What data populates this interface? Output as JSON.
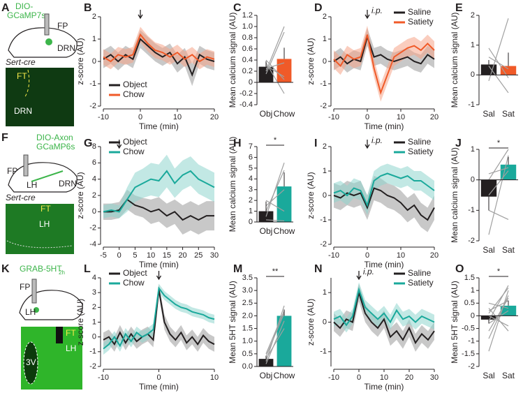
{
  "diagrams": [
    {
      "panel": "A",
      "labels": [
        "DIO-",
        "GCaMP7s",
        "FP",
        "DRN",
        "Sert-cre",
        "FT",
        "DRN"
      ]
    },
    {
      "panel": "F",
      "labels": [
        "DIO-Axon",
        "GCaMP6s",
        "FP",
        "LH",
        "DRN",
        "Sert-cre",
        "FT",
        "LH"
      ]
    },
    {
      "panel": "K",
      "labels": [
        "GRAB-5HT",
        "2h",
        "FP",
        "LH",
        "FT",
        "LH",
        "3V"
      ]
    }
  ],
  "chart_data": [
    {
      "type": "line",
      "panel": "B",
      "xlabel": "Time (min)",
      "ylabel": "z-score (AU)",
      "x": [
        -10,
        -8,
        -6,
        -4,
        -2,
        0,
        2,
        4,
        6,
        8,
        10,
        12,
        14,
        16,
        18,
        20
      ],
      "xlim": [
        -10,
        20
      ],
      "xticks": [
        -10,
        0,
        10,
        20
      ],
      "ylim": [
        -2,
        2
      ],
      "yticks": [
        -2,
        -1,
        0,
        1,
        2
      ],
      "arrow_x": 0,
      "legend": "lower left",
      "series": [
        {
          "name": "Object",
          "color": "#231f20",
          "band_color": "#9a9a9a",
          "values": [
            0.1,
            0.3,
            0,
            0.3,
            0.1,
            1.0,
            0.7,
            0.4,
            0.2,
            0.4,
            -0.1,
            0.2,
            -0.6,
            0.3,
            0.1,
            0.0
          ],
          "error": [
            0.4,
            0.4,
            0.4,
            0.4,
            0.4,
            0.4,
            0.4,
            0.4,
            0.4,
            0.4,
            0.4,
            0.4,
            0.5,
            0.4,
            0.4,
            0.4
          ]
        },
        {
          "name": "Chow",
          "color": "#f05a28",
          "band_color": "#f5a488",
          "values": [
            0.2,
            0,
            0.3,
            0.2,
            0.3,
            1.2,
            0.8,
            0.5,
            0.4,
            0.2,
            0.4,
            0.1,
            0.3,
            0,
            0.2,
            0.1
          ],
          "error": [
            0.35,
            0.35,
            0.35,
            0.35,
            0.35,
            0.35,
            0.35,
            0.35,
            0.35,
            0.35,
            0.35,
            0.35,
            0.35,
            0.35,
            0.35,
            0.35
          ]
        }
      ]
    },
    {
      "type": "bar",
      "panel": "C",
      "ylabel": "Mean calcium signal (AU)",
      "categories": [
        "Obj",
        "Chow"
      ],
      "values": [
        0.28,
        0.42
      ],
      "error": [
        0.1,
        0.2
      ],
      "colors": [
        "#231f20",
        "#f05a28"
      ],
      "pairs": [
        [
          0.2,
          1.0
        ],
        [
          0.15,
          0.9
        ],
        [
          0.3,
          0.1
        ],
        [
          0.25,
          0.35
        ],
        [
          0.4,
          0.05
        ],
        [
          0.35,
          -0.2
        ]
      ],
      "ylim": [
        -0.4,
        1.2
      ],
      "yticks": [
        -0.4,
        -0.2,
        0,
        0.2,
        0.4,
        0.6,
        0.8,
        {
          "value": 1,
          "label": "1.0"
        },
        1.2
      ]
    },
    {
      "type": "line",
      "panel": "D",
      "xlabel": "Time (min)",
      "ylabel": "z-score (AU)",
      "annotation": "i.p.",
      "x": [
        -10,
        -8,
        -6,
        -4,
        -2,
        0,
        2,
        4,
        6,
        8,
        10,
        12,
        14,
        16,
        18,
        20
      ],
      "xlim": [
        -10,
        20
      ],
      "xticks": [
        -10,
        0,
        10,
        20
      ],
      "ylim": [
        -2,
        2
      ],
      "yticks": [
        -2,
        -1,
        0,
        1,
        2
      ],
      "arrow_x": 0,
      "legend": "upper right",
      "series": [
        {
          "name": "Saline",
          "color": "#231f20",
          "band_color": "#9a9a9a",
          "values": [
            0,
            0.2,
            -0.1,
            0.1,
            0,
            1.1,
            0.2,
            0.3,
            0.1,
            0,
            0.1,
            0.2,
            0,
            -0.1,
            0.3,
            0.1
          ],
          "error": [
            0.4,
            0.4,
            0.4,
            0.4,
            0.4,
            0.4,
            0.4,
            0.4,
            0.4,
            0.4,
            0.4,
            0.4,
            0.4,
            0.4,
            0.4,
            0.4
          ]
        },
        {
          "name": "Satiety",
          "color": "#f05a28",
          "band_color": "#f5a488",
          "values": [
            0.1,
            -0.2,
            0.3,
            0.1,
            0.2,
            1.2,
            -0.3,
            -1.4,
            -0.6,
            0.2,
            0.4,
            0.6,
            0.7,
            0.5,
            0.8,
            0.5
          ],
          "error": [
            0.4,
            0.4,
            0.4,
            0.4,
            0.4,
            0.4,
            0.4,
            0.4,
            0.4,
            0.4,
            0.4,
            0.4,
            0.4,
            0.4,
            0.4,
            0.4
          ]
        }
      ]
    },
    {
      "type": "bar",
      "panel": "E",
      "ylabel": "Mean calcium signal (AU)",
      "categories": [
        "Sal",
        "Sat"
      ],
      "values": [
        0.35,
        0.3
      ],
      "error": [
        0.15,
        0.45
      ],
      "colors": [
        "#231f20",
        "#f05a28"
      ],
      "pairs": [
        [
          0.9,
          -0.1
        ],
        [
          0.6,
          0.2
        ],
        [
          -0.2,
          1.9
        ],
        [
          0.3,
          -0.6
        ]
      ],
      "ylim": [
        -1,
        2
      ],
      "yticks": [
        -1,
        0,
        1,
        2
      ]
    },
    {
      "type": "line",
      "panel": "G",
      "xlabel": "Time (min)",
      "ylabel": "z-score (AU)",
      "x": [
        -5,
        -2.5,
        0,
        2.5,
        5,
        7.5,
        10,
        12.5,
        15,
        17.5,
        20,
        22.5,
        25,
        27.5,
        30
      ],
      "xlim": [
        -5,
        30
      ],
      "xticks": [
        -5,
        0,
        5,
        10,
        15,
        20,
        25,
        30
      ],
      "ylim": [
        -4,
        8
      ],
      "yticks": [
        -4,
        -2,
        0,
        2,
        4,
        6,
        8
      ],
      "arrow_x": 0,
      "legend": "upper left",
      "series": [
        {
          "name": "Object",
          "color": "#231f20",
          "band_color": "#9a9a9a",
          "values": [
            0,
            0,
            0.2,
            1.5,
            0.8,
            0.5,
            0,
            0.3,
            -0.5,
            0,
            -1,
            -0.5,
            -1,
            -0.5,
            -0.5
          ],
          "error": [
            1,
            1,
            1,
            1.2,
            1.2,
            1.2,
            1.5,
            1.5,
            1.5,
            1.5,
            1.8,
            1.8,
            1.8,
            1.8,
            1.8
          ]
        },
        {
          "name": "Chow",
          "color": "#1aa99b",
          "band_color": "#8fd6ce",
          "values": [
            0,
            0.2,
            0,
            1.5,
            3,
            3.5,
            4,
            3.8,
            5,
            3.5,
            4.5,
            5,
            4,
            3.5,
            3
          ],
          "error": [
            0.8,
            0.8,
            0.8,
            1.5,
            1.8,
            1.8,
            2,
            2,
            2,
            1.8,
            1.8,
            1.8,
            1.8,
            1.8,
            1.8
          ]
        }
      ]
    },
    {
      "type": "bar",
      "panel": "H",
      "ylabel": "Mean calcium signal (AU)",
      "significance": "*",
      "categories": [
        "Obj",
        "Chow"
      ],
      "values": [
        1.0,
        3.3
      ],
      "error": [
        0.9,
        1.3
      ],
      "colors": [
        "#231f20",
        "#1aa99b"
      ],
      "pairs": [
        [
          0.5,
          5.5
        ],
        [
          1,
          4.8
        ],
        [
          2,
          1
        ],
        [
          0.2,
          0.1
        ],
        [
          1.5,
          3
        ]
      ],
      "ylim": [
        0,
        7
      ],
      "yticks": [
        0,
        1,
        2,
        3,
        4,
        5,
        6,
        7
      ]
    },
    {
      "type": "line",
      "panel": "I",
      "xlabel": "Time (min)",
      "ylabel": "z-score (AU)",
      "annotation": "i.p.",
      "x": [
        -10,
        -8,
        -6,
        -4,
        -2,
        0,
        2,
        4,
        6,
        8,
        10,
        12,
        14,
        16,
        18,
        20
      ],
      "xlim": [
        -10,
        20
      ],
      "xticks": [
        -10,
        0,
        10,
        20
      ],
      "ylim": [
        -2,
        2
      ],
      "yticks": [
        -2,
        -1,
        0,
        1,
        2
      ],
      "arrow_x": 0,
      "legend": "upper right",
      "series": [
        {
          "name": "Saline",
          "color": "#231f20",
          "band_color": "#9a9a9a",
          "values": [
            0,
            -0.1,
            0.1,
            0,
            0.1,
            -0.5,
            0.3,
            0.2,
            0,
            -0.1,
            -0.3,
            -0.6,
            -0.4,
            -0.8,
            -1.0,
            -0.5
          ],
          "error": [
            0.5,
            0.5,
            0.5,
            0.5,
            0.5,
            0.5,
            0.5,
            0.5,
            0.5,
            0.5,
            0.5,
            0.5,
            0.5,
            0.5,
            0.5,
            0.5
          ]
        },
        {
          "name": "Satiety",
          "color": "#1aa99b",
          "band_color": "#8fd6ce",
          "values": [
            0.1,
            0.2,
            0,
            0.3,
            0.2,
            -0.4,
            0.6,
            0.8,
            0.9,
            0.8,
            0.7,
            0.8,
            0.6,
            0.6,
            0.4,
            0.2
          ],
          "error": [
            0.4,
            0.4,
            0.4,
            0.4,
            0.4,
            0.4,
            0.4,
            0.4,
            0.4,
            0.4,
            0.4,
            0.4,
            0.4,
            0.4,
            0.4,
            0.4
          ]
        }
      ]
    },
    {
      "type": "bar",
      "panel": "J",
      "ylabel": "Mean calcium signal (AU)",
      "significance": "*",
      "categories": [
        "Sal",
        "Sat"
      ],
      "values": [
        -0.55,
        0.5
      ],
      "error": [
        0.45,
        0.25
      ],
      "colors": [
        "#231f20",
        "#1aa99b"
      ],
      "pairs": [
        [
          -1.8,
          0.8
        ],
        [
          0,
          1
        ],
        [
          -0.5,
          0.3
        ],
        [
          0.2,
          0.4
        ],
        [
          -1,
          -1.3
        ]
      ],
      "ylim": [
        -2,
        1
      ],
      "yticks": [
        -2,
        -1,
        0,
        1
      ]
    },
    {
      "type": "line",
      "panel": "L",
      "xlabel": "Time (min)",
      "ylabel": "z-score (AU)",
      "x": [
        -10,
        -9,
        -8,
        -7,
        -6,
        -5,
        -4,
        -3,
        -2,
        -1,
        0,
        1,
        2,
        3,
        4,
        5,
        6,
        7,
        8,
        9,
        10
      ],
      "xlim": [
        -10,
        10
      ],
      "xticks": [
        -10,
        0,
        10
      ],
      "ylim": [
        -2,
        4
      ],
      "yticks": [
        -2,
        -1,
        0,
        1,
        2,
        3,
        4
      ],
      "arrow_x": 0,
      "legend": "upper left",
      "series": [
        {
          "name": "Object",
          "color": "#231f20",
          "band_color": "#9a9a9a",
          "values": [
            -0.2,
            0,
            -0.5,
            0.3,
            -0.4,
            0.2,
            -0.3,
            0,
            0.2,
            -0.2,
            3.2,
            1,
            0.2,
            -0.2,
            0.3,
            -0.4,
            0,
            -0.5,
            0.1,
            -0.3,
            -0.5
          ],
          "error": [
            0.5,
            0.5,
            0.5,
            0.5,
            0.5,
            0.5,
            0.5,
            0.5,
            0.5,
            0.5,
            0.4,
            0.5,
            0.5,
            0.5,
            0.5,
            0.5,
            0.5,
            0.5,
            0.5,
            0.5,
            0.5
          ]
        },
        {
          "name": "Chow",
          "color": "#1aa99b",
          "band_color": "#8fd6ce",
          "values": [
            -0.8,
            -0.5,
            0,
            -0.6,
            0.2,
            -0.3,
            0.3,
            0,
            0.2,
            0.5,
            3.3,
            2.8,
            2.5,
            2.2,
            2,
            1.9,
            1.7,
            1.6,
            1.5,
            1.3,
            1.2
          ],
          "error": [
            0.4,
            0.4,
            0.4,
            0.4,
            0.4,
            0.4,
            0.4,
            0.4,
            0.4,
            0.4,
            0.3,
            0.3,
            0.3,
            0.3,
            0.3,
            0.3,
            0.3,
            0.3,
            0.3,
            0.3,
            0.3
          ]
        }
      ]
    },
    {
      "type": "bar",
      "panel": "M",
      "ylabel": "Mean 5HT signal (AU)",
      "significance": "**",
      "categories": [
        "Obj",
        "Chow"
      ],
      "values": [
        0.3,
        2.0
      ],
      "error": [
        0.12,
        0.25
      ],
      "colors": [
        "#231f20",
        "#1aa99b"
      ],
      "pairs": [
        [
          0.2,
          2.4
        ],
        [
          0.4,
          2.1
        ],
        [
          0.3,
          1.5
        ],
        [
          0.1,
          1.8
        ],
        [
          0.5,
          2.2
        ]
      ],
      "ylim": [
        0,
        3.5
      ],
      "yticks": [
        {
          "value": 0,
          "label": "0.0"
        },
        0.5,
        {
          "value": 1,
          "label": "1.0"
        },
        1.5,
        {
          "value": 2,
          "label": "2.0"
        },
        2.5,
        {
          "value": 3,
          "label": "3.0"
        },
        3.5
      ]
    },
    {
      "type": "line",
      "panel": "N",
      "xlabel": "Time (min)",
      "ylabel": "z-score (AU)",
      "annotation": "i.p.",
      "x": [
        -10,
        -7.5,
        -5,
        -2.5,
        0,
        2.5,
        5,
        7.5,
        10,
        12.5,
        15,
        17.5,
        20,
        22.5,
        25,
        27.5,
        30
      ],
      "xlim": [
        -10,
        30
      ],
      "xticks": [
        -10,
        0,
        10,
        20,
        30
      ],
      "ylim": [
        -1.5,
        1.5
      ],
      "yticks": [
        -1,
        0,
        1
      ],
      "arrow_x": 0,
      "legend": "upper right",
      "series": [
        {
          "name": "Saline",
          "color": "#231f20",
          "band_color": "#9a9a9a",
          "values": [
            0,
            -0.2,
            0.1,
            0,
            1.0,
            0.3,
            0,
            -0.2,
            0.1,
            -0.5,
            -0.3,
            -0.6,
            -0.2,
            -0.7,
            -0.4,
            -0.6,
            -0.3
          ],
          "error": [
            0.3,
            0.3,
            0.3,
            0.3,
            0.3,
            0.3,
            0.3,
            0.3,
            0.3,
            0.3,
            0.3,
            0.3,
            0.3,
            0.3,
            0.3,
            0.3,
            0.3
          ]
        },
        {
          "name": "Satiety",
          "color": "#1aa99b",
          "band_color": "#8fd6ce",
          "values": [
            0.1,
            0.2,
            -0.1,
            0.2,
            1.1,
            0.5,
            0.3,
            0.1,
            0.3,
            0,
            0.4,
            0.1,
            0.2,
            0,
            0.2,
            0.1,
            0
          ],
          "error": [
            0.25,
            0.25,
            0.25,
            0.25,
            0.25,
            0.25,
            0.25,
            0.25,
            0.25,
            0.25,
            0.25,
            0.25,
            0.25,
            0.25,
            0.25,
            0.25,
            0.25
          ]
        }
      ]
    },
    {
      "type": "bar",
      "panel": "O",
      "ylabel": "Mean 5HT signal (AU)",
      "significance": "*",
      "categories": [
        "Sal",
        "Sat"
      ],
      "values": [
        -0.15,
        0.4
      ],
      "error": [
        0.15,
        0.2
      ],
      "colors": [
        "#231f20",
        "#1aa99b"
      ],
      "pairs": [
        [
          -1.4,
          1.0
        ],
        [
          -0.6,
          0.7
        ],
        [
          0.3,
          -0.6
        ],
        [
          0.1,
          1.1
        ],
        [
          -0.3,
          0.2
        ],
        [
          0.5,
          0.3
        ],
        [
          -0.9,
          0.8
        ],
        [
          0,
          -0.4
        ],
        [
          0.2,
          0.6
        ],
        [
          -0.2,
          1.2
        ]
      ],
      "ylim": [
        -2,
        1.5
      ],
      "yticks": [
        -2,
        -1.5,
        -1,
        -0.5,
        0,
        0.5,
        1,
        1.5
      ]
    }
  ]
}
